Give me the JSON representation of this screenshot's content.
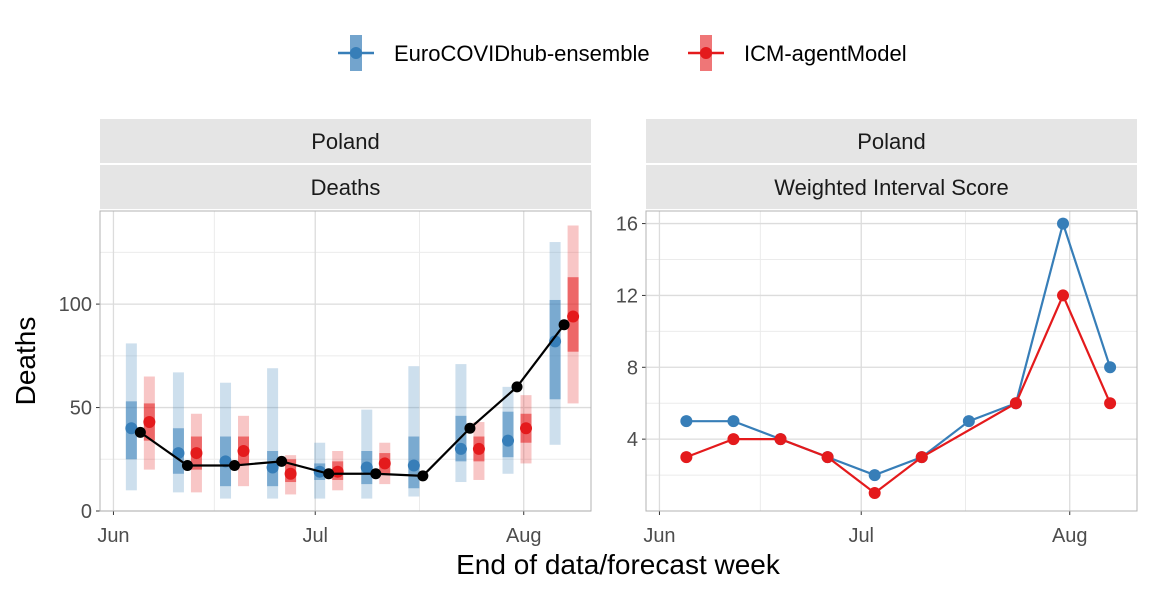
{
  "legend": {
    "items": [
      {
        "name": "EuroCOVIDhub-ensemble",
        "color": "#377EB8"
      },
      {
        "name": "ICM-agentModel",
        "color": "#E41A1C"
      }
    ]
  },
  "x_axis_title": "End of data/forecast week",
  "chart_data": [
    {
      "type": "line",
      "panel_strips": [
        "Poland",
        "Deaths"
      ],
      "ylabel": "Deaths",
      "ylim": [
        0,
        145
      ],
      "yticks": [
        0,
        50,
        100
      ],
      "x_ticks": [
        {
          "label": "Jun",
          "date": "2021-06-01"
        },
        {
          "label": "Jul",
          "date": "2021-07-01"
        },
        {
          "label": "Aug",
          "date": "2021-08-01"
        }
      ],
      "xlim": [
        "2021-05-30",
        "2021-08-11"
      ],
      "observed": {
        "color": "#000000",
        "x": [
          "2021-06-05",
          "2021-06-12",
          "2021-06-19",
          "2021-06-26",
          "2021-07-03",
          "2021-07-10",
          "2021-07-17",
          "2021-07-24",
          "2021-07-31",
          "2021-08-07"
        ],
        "y": [
          38,
          22,
          22,
          24,
          18,
          18,
          17,
          40,
          60,
          90
        ]
      },
      "forecasts": [
        {
          "model": "EuroCOVIDhub-ensemble",
          "color": "#377EB8",
          "x": [
            "2021-06-05",
            "2021-06-12",
            "2021-06-19",
            "2021-06-26",
            "2021-07-03",
            "2021-07-10",
            "2021-07-17",
            "2021-07-24",
            "2021-07-31",
            "2021-08-07"
          ],
          "median": [
            40,
            28,
            24,
            21,
            19,
            21,
            22,
            30,
            34,
            82
          ],
          "q50": [
            [
              25,
              53
            ],
            [
              18,
              40
            ],
            [
              12,
              36
            ],
            [
              12,
              29
            ],
            [
              15,
              23
            ],
            [
              13,
              29
            ],
            [
              11,
              36
            ],
            [
              24,
              46
            ],
            [
              26,
              48
            ],
            [
              54,
              102
            ]
          ],
          "q90": [
            [
              10,
              81
            ],
            [
              9,
              67
            ],
            [
              6,
              62
            ],
            [
              6,
              69
            ],
            [
              6,
              33
            ],
            [
              6,
              49
            ],
            [
              7,
              70
            ],
            [
              14,
              71
            ],
            [
              18,
              60
            ],
            [
              32,
              130
            ]
          ]
        },
        {
          "model": "ICM-agentModel",
          "color": "#E41A1C",
          "x": [
            "2021-06-05",
            "2021-06-12",
            "2021-06-19",
            "2021-06-26",
            "2021-07-03",
            "2021-07-10",
            "2021-07-17",
            "2021-07-24",
            "2021-07-31",
            "2021-08-07"
          ],
          "median": [
            43,
            28,
            29,
            18,
            19,
            23,
            null,
            30,
            40,
            94
          ],
          "q50": [
            [
              34,
              52
            ],
            [
              20,
              36
            ],
            [
              22,
              36
            ],
            [
              14,
              25
            ],
            [
              15,
              24
            ],
            [
              18,
              28
            ],
            [
              null,
              null
            ],
            [
              24,
              36
            ],
            [
              33,
              47
            ],
            [
              77,
              113
            ]
          ],
          "q90": [
            [
              20,
              65
            ],
            [
              9,
              47
            ],
            [
              12,
              46
            ],
            [
              8,
              27
            ],
            [
              10,
              29
            ],
            [
              13,
              33
            ],
            [
              null,
              null
            ],
            [
              15,
              43
            ],
            [
              23,
              56
            ],
            [
              52,
              138
            ]
          ]
        }
      ]
    },
    {
      "type": "line",
      "panel_strips": [
        "Poland",
        "Weighted Interval Score"
      ],
      "ylim": [
        0,
        16.7
      ],
      "yticks": [
        4,
        8,
        12,
        16
      ],
      "x_ticks": [
        {
          "label": "Jun",
          "date": "2021-06-01"
        },
        {
          "label": "Jul",
          "date": "2021-07-01"
        },
        {
          "label": "Aug",
          "date": "2021-08-01"
        }
      ],
      "xlim": [
        "2021-05-30",
        "2021-08-11"
      ],
      "series": [
        {
          "name": "EuroCOVIDhub-ensemble",
          "color": "#377EB8",
          "x": [
            "2021-06-05",
            "2021-06-12",
            "2021-06-19",
            "2021-06-26",
            "2021-07-03",
            "2021-07-10",
            "2021-07-17",
            "2021-07-24",
            "2021-07-31",
            "2021-08-07"
          ],
          "values": [
            5,
            5,
            4,
            3,
            2,
            3,
            5,
            6,
            16,
            8
          ]
        },
        {
          "name": "ICM-agentModel",
          "color": "#E41A1C",
          "x": [
            "2021-06-05",
            "2021-06-12",
            "2021-06-19",
            "2021-06-26",
            "2021-07-03",
            "2021-07-10",
            "2021-07-24",
            "2021-07-31",
            "2021-08-07"
          ],
          "values": [
            3,
            4,
            4,
            3,
            1,
            3,
            6,
            12,
            6
          ]
        }
      ]
    }
  ]
}
